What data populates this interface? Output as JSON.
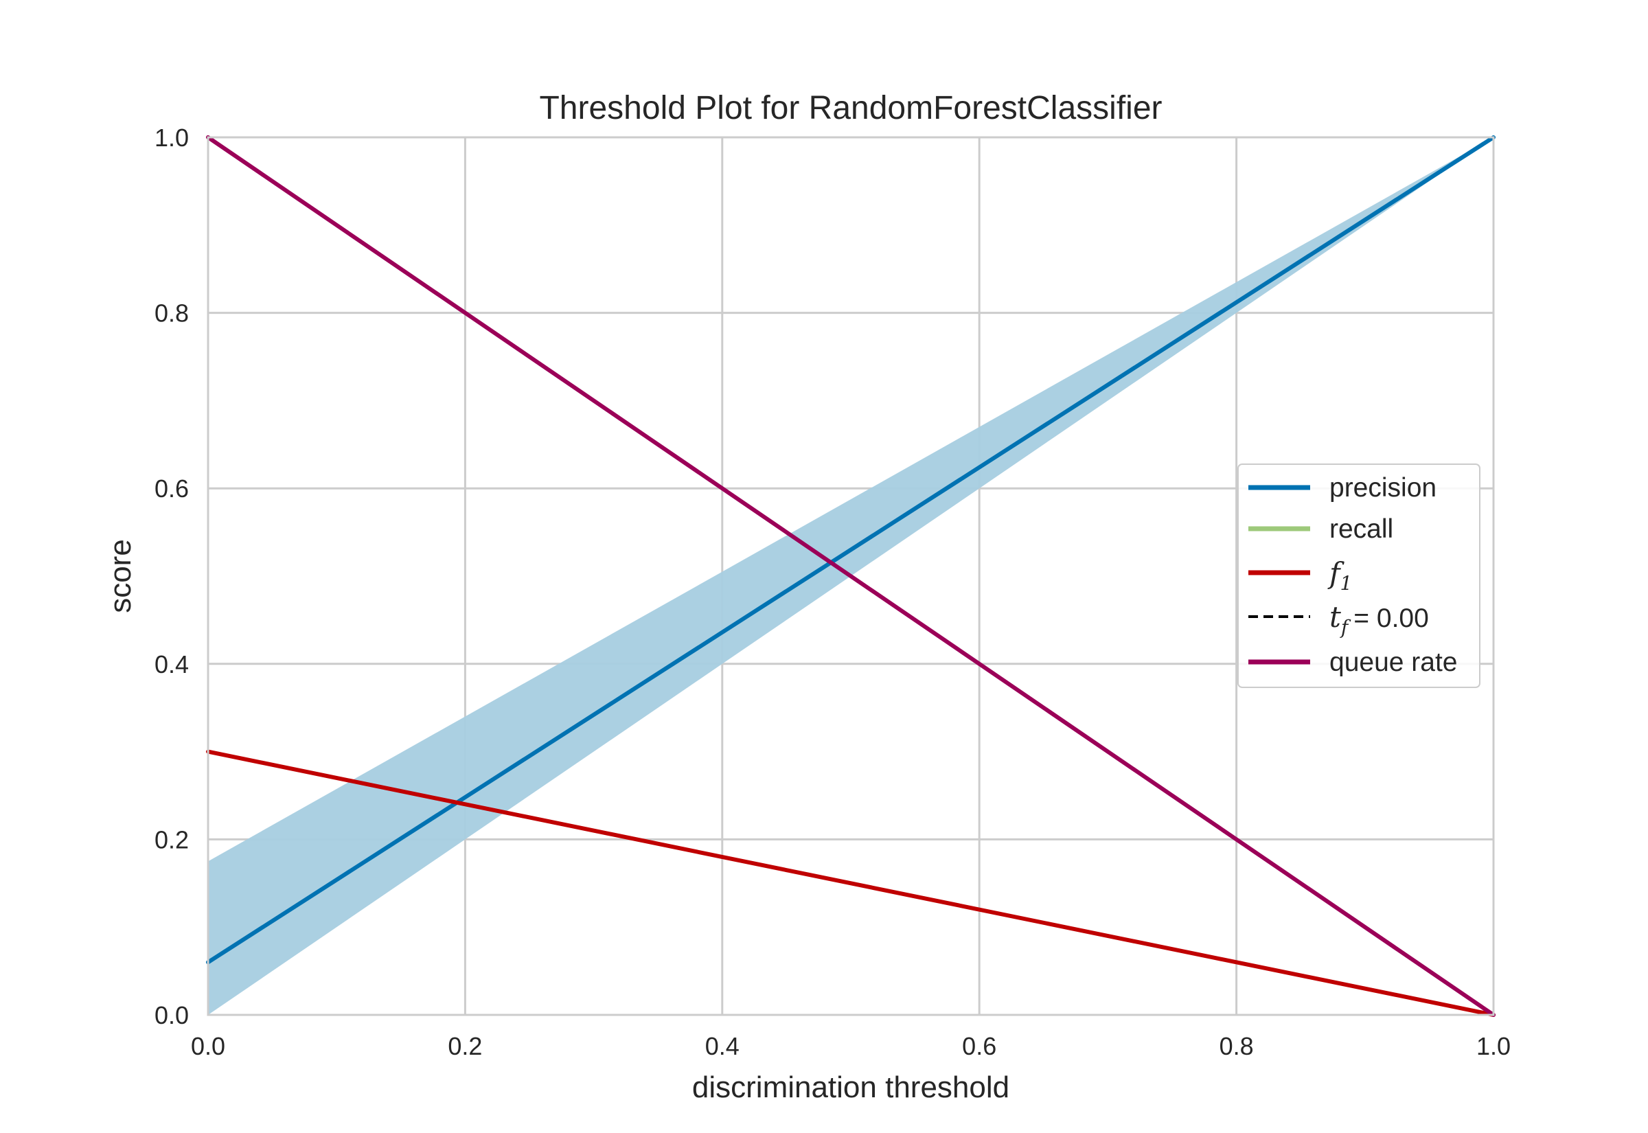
{
  "chart_data": {
    "type": "line",
    "title": "Threshold Plot for RandomForestClassifier",
    "xlabel": "discrimination threshold",
    "ylabel": "score",
    "xlim": [
      0.0,
      1.0
    ],
    "ylim": [
      0.0,
      1.0
    ],
    "xticks": [
      0.0,
      0.2,
      0.4,
      0.6,
      0.8,
      1.0
    ],
    "yticks": [
      0.0,
      0.2,
      0.4,
      0.6,
      0.8,
      1.0
    ],
    "xtick_labels": [
      "0.0",
      "0.2",
      "0.4",
      "0.6",
      "0.8",
      "1.0"
    ],
    "ytick_labels": [
      "0.0",
      "0.2",
      "0.4",
      "0.6",
      "0.8",
      "1.0"
    ],
    "grid": true,
    "legend_position": "center-right",
    "series": [
      {
        "name": "precision",
        "color": "#0072B2",
        "x": [
          0.0,
          1.0
        ],
        "y": [
          0.06,
          1.0
        ],
        "band": {
          "x": [
            0.0,
            0.2,
            0.4,
            0.6,
            0.8,
            1.0
          ],
          "lower": [
            0.0,
            0.2,
            0.4,
            0.6,
            0.8,
            1.0
          ],
          "upper": [
            0.175,
            0.34,
            0.505,
            0.67,
            0.835,
            1.0
          ],
          "color": "#A7CDE0"
        }
      },
      {
        "name": "recall",
        "color": "#9DC97A",
        "x": [],
        "y": []
      },
      {
        "name": "f",
        "name_sub": "1",
        "color": "#C00000",
        "x": [
          0.0,
          1.0
        ],
        "y": [
          0.3,
          0.0
        ]
      },
      {
        "name": "t",
        "name_sub": "f",
        "name_suffix": "= 0.00",
        "color": "#000000",
        "dashed": true,
        "x": [
          0.0,
          0.0
        ],
        "y": [
          0.0,
          1.0
        ]
      },
      {
        "name": "queue rate",
        "color": "#9B0058",
        "x": [
          0.0,
          1.0
        ],
        "y": [
          1.0,
          0.0
        ]
      }
    ]
  }
}
